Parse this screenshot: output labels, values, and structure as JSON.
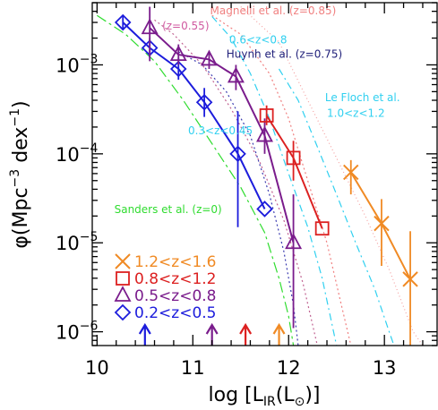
{
  "chart_data": {
    "type": "line",
    "title": "",
    "xlabel": "log [L_IR(L_⊙)]",
    "ylabel": "φ(Mpc⁻³ dex⁻¹)",
    "xscale": "linear",
    "yscale": "log",
    "xlim": [
      9.95,
      13.55
    ],
    "ylim": [
      7e-07,
      0.005
    ],
    "x_ticks": [
      {
        "v": 10,
        "label": "10"
      },
      {
        "v": 11,
        "label": "11"
      },
      {
        "v": 12,
        "label": "12"
      },
      {
        "v": 13,
        "label": "13"
      }
    ],
    "y_ticks": [
      {
        "v": 1e-06,
        "base": "10",
        "exp": "−6"
      },
      {
        "v": 1e-05,
        "base": "10",
        "exp": "−5"
      },
      {
        "v": 0.0001,
        "base": "10",
        "exp": "−4"
      },
      {
        "v": 0.001,
        "base": "10",
        "exp": "−3"
      }
    ],
    "series": [
      {
        "name": "0.2<z<0.5",
        "color": "#1c1cdc",
        "marker": "diamond",
        "points": [
          {
            "x": 10.27,
            "y": 0.003,
            "lo": 0.0025,
            "hi": 0.0036
          },
          {
            "x": 10.55,
            "y": 0.00155,
            "lo": 0.0012,
            "hi": 0.002
          },
          {
            "x": 10.85,
            "y": 0.0009,
            "lo": 0.00068,
            "hi": 0.0012
          },
          {
            "x": 11.12,
            "y": 0.00038,
            "lo": 0.00026,
            "hi": 0.00055
          },
          {
            "x": 11.47,
            "y": 0.0001,
            "lo": 1.5e-05,
            "hi": 0.0003
          },
          {
            "x": 11.75,
            "y": 2.4e-05,
            "lo": 2.4e-05,
            "hi": 2.4e-05
          }
        ]
      },
      {
        "name": "0.5<z<0.8",
        "color": "#7a1c8c",
        "marker": "triangle",
        "points": [
          {
            "x": 10.55,
            "y": 0.0026,
            "lo": 0.0011,
            "hi": 0.0045
          },
          {
            "x": 10.85,
            "y": 0.0013,
            "lo": 0.001,
            "hi": 0.0017
          },
          {
            "x": 11.17,
            "y": 0.00115,
            "lo": 0.0009,
            "hi": 0.0014
          },
          {
            "x": 11.45,
            "y": 0.00074,
            "lo": 0.00052,
            "hi": 0.001
          },
          {
            "x": 11.75,
            "y": 0.00016,
            "lo": 0.0001,
            "hi": 0.00025
          },
          {
            "x": 12.05,
            "y": 1e-05,
            "lo": 1.1e-06,
            "hi": 3.5e-05
          }
        ]
      },
      {
        "name": "0.8<z<1.2",
        "color": "#dc2020",
        "marker": "square",
        "points": [
          {
            "x": 11.77,
            "y": 0.00027,
            "lo": 0.00021,
            "hi": 0.00035
          },
          {
            "x": 12.05,
            "y": 9e-05,
            "lo": 5e-05,
            "hi": 0.00014
          },
          {
            "x": 12.35,
            "y": 1.45e-05,
            "lo": 1.45e-05,
            "hi": 1.45e-05
          }
        ]
      },
      {
        "name": "1.2<z<1.6",
        "color": "#f08a24",
        "marker": "cross",
        "points": [
          {
            "x": 12.65,
            "y": 6.2e-05,
            "lo": 3.5e-05,
            "hi": 8.5e-05
          },
          {
            "x": 12.97,
            "y": 1.65e-05,
            "lo": 5.5e-06,
            "hi": 3.1e-05
          },
          {
            "x": 13.27,
            "y": 3.9e-06,
            "lo": 7e-07,
            "hi": 1.35e-05
          }
        ]
      }
    ],
    "reference_curves": [
      {
        "name": "Sanders et al. (z=0)",
        "color": "#30dc30",
        "dash": "12,4,3,4",
        "points": [
          [
            10.0,
            0.0036
          ],
          [
            10.3,
            0.0022
          ],
          [
            10.6,
            0.0011
          ],
          [
            10.9,
            0.0004
          ],
          [
            11.2,
            0.00013
          ],
          [
            11.5,
            4.2e-05
          ],
          [
            11.75,
            1.3e-05
          ],
          [
            11.9,
            4e-06
          ],
          [
            12.0,
            1.5e-06
          ],
          [
            12.05,
            7e-07
          ]
        ]
      },
      {
        "name": "Huynh et al. (z=0.75)",
        "color": "#3a3ab0",
        "dash": "2,3",
        "points": [
          [
            10.85,
            0.0014
          ],
          [
            11.1,
            0.001
          ],
          [
            11.35,
            0.0005
          ],
          [
            11.6,
            0.00016
          ],
          [
            11.8,
            3.5e-05
          ],
          [
            11.95,
            8e-06
          ],
          [
            12.05,
            2e-06
          ],
          [
            12.1,
            7e-07
          ]
        ]
      },
      {
        "name": "Magnelli et al. (z=0.55)",
        "color": "#c06090",
        "dash": "2,3",
        "points": [
          [
            10.6,
            0.0032
          ],
          [
            10.8,
            0.0022
          ],
          [
            11.1,
            0.001
          ],
          [
            11.4,
            0.00032
          ],
          [
            11.7,
            8e-05
          ],
          [
            11.95,
            1.8e-05
          ],
          [
            12.15,
            3.5e-06
          ],
          [
            12.3,
            7e-07
          ]
        ]
      },
      {
        "name": "Magnelli et al. (z=0.85)",
        "color": "#f08080",
        "dash": "2,3",
        "points": [
          [
            11.2,
            0.0036
          ],
          [
            11.5,
            0.0022
          ],
          [
            11.8,
            0.0008
          ],
          [
            12.0,
            0.00025
          ],
          [
            12.2,
            5e-05
          ],
          [
            12.4,
            1e-05
          ],
          [
            12.55,
            2e-06
          ],
          [
            12.65,
            7e-07
          ]
        ]
      },
      {
        "name": "Le Floch et al. (0.6<z<0.8)",
        "color": "#30d0f0",
        "dash": "8,4,2,4",
        "points": [
          [
            11.2,
            0.0035
          ],
          [
            11.4,
            0.002
          ],
          [
            11.6,
            0.0008
          ],
          [
            11.8,
            0.00025
          ],
          [
            12.0,
            6e-05
          ],
          [
            12.2,
            1.5e-05
          ],
          [
            12.35,
            4e-06
          ],
          [
            12.5,
            7e-07
          ]
        ]
      },
      {
        "name": "Le Floch et al. (1.0<z<1.2)",
        "color": "#30d0f0",
        "dash": "8,4,2,4",
        "points": [
          [
            11.9,
            0.0009
          ],
          [
            12.1,
            0.0004
          ],
          [
            12.3,
            0.00012
          ],
          [
            12.5,
            3.5e-05
          ],
          [
            12.7,
            1e-05
          ],
          [
            12.9,
            3e-06
          ],
          [
            13.05,
            1e-06
          ],
          [
            13.1,
            7e-07
          ]
        ]
      },
      {
        "name": "Magnelli et al. (z=0.85) faint",
        "color": "#f4a0a0",
        "dash": "1,3",
        "points": [
          [
            11.5,
            0.0045
          ],
          [
            11.9,
            0.0018
          ],
          [
            12.2,
            0.0004
          ],
          [
            12.5,
            9e-05
          ],
          [
            12.8,
            2e-05
          ],
          [
            13.05,
            5e-06
          ],
          [
            13.3,
            1e-06
          ],
          [
            13.4,
            7e-07
          ]
        ]
      }
    ],
    "annotations": [
      {
        "text": "Magnelli et al. (z=0.85)",
        "color": "#f08080",
        "x": 11.18,
        "y": 0.0037
      },
      {
        "text": "(z=0.55)",
        "color": "#d05aa0",
        "x": 10.68,
        "y": 0.0025
      },
      {
        "text": "0.6<z<0.8",
        "color": "#30d0f0",
        "x": 11.38,
        "y": 0.00175
      },
      {
        "text": "Huynh et al. (z=0.75)",
        "color": "#20207a",
        "x": 11.35,
        "y": 0.0012
      },
      {
        "text": "Le Floch et al.",
        "color": "#30d0f0",
        "x": 12.38,
        "y": 0.00039
      },
      {
        "text": "1.0<z<1.2",
        "color": "#30d0f0",
        "x": 12.4,
        "y": 0.00026
      },
      {
        "text": "0.3<z<0.45",
        "color": "#30d0f0",
        "x": 10.95,
        "y": 0.000165
      },
      {
        "text": "Sanders et al. (z=0)",
        "color": "#30dc30",
        "x": 10.18,
        "y": 2.15e-05
      }
    ],
    "lower_limit_arrows": [
      {
        "x": 10.5,
        "color": "#1c1cdc"
      },
      {
        "x": 11.2,
        "color": "#7a1c8c"
      },
      {
        "x": 11.55,
        "color": "#dc2020"
      },
      {
        "x": 11.9,
        "color": "#f08a24"
      }
    ],
    "legend": {
      "placement": "bottom-left",
      "entries": [
        {
          "label": "1.2<z<1.6",
          "color": "#f08a24",
          "marker": "cross"
        },
        {
          "label": "0.8<z<1.2",
          "color": "#dc2020",
          "marker": "square"
        },
        {
          "label": "0.5<z<0.8",
          "color": "#7a1c8c",
          "marker": "triangle"
        },
        {
          "label": "0.2<z<0.5",
          "color": "#1c1cdc",
          "marker": "diamond"
        }
      ]
    },
    "grid": false
  }
}
